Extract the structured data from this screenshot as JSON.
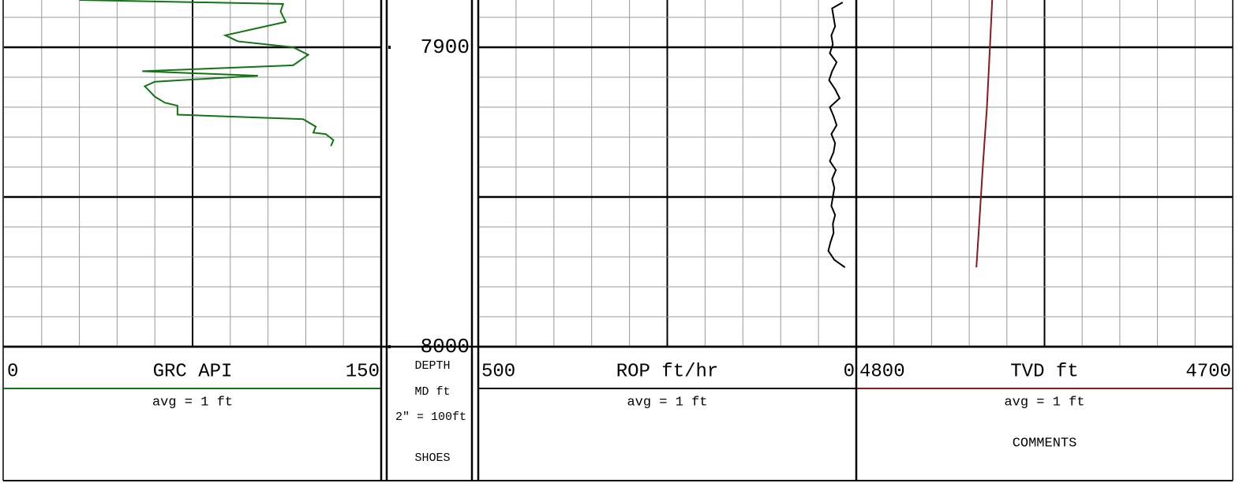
{
  "chart_data": {
    "type": "well-log",
    "depth": {
      "label": "DEPTH",
      "unit": "MD ft",
      "scale": "2\" = 100ft",
      "note": "SHOES",
      "ylim": [
        7884.2,
        8000
      ],
      "yticks": [
        7900,
        8000
      ],
      "ygrid": [
        7890,
        7900,
        7910,
        7920,
        7930,
        7940,
        7950,
        7960,
        7970,
        7980,
        7990,
        8000
      ],
      "ygrid_major": [
        7900,
        7950,
        8000
      ]
    },
    "tracks": [
      {
        "name": "GRC API",
        "note": "avg = 1 ft",
        "color": "#137413",
        "xlim": [
          0,
          150
        ],
        "xticks": [
          0,
          150
        ],
        "xgrid": [
          15,
          30,
          45,
          60,
          75,
          90,
          105,
          120,
          135
        ],
        "xgrid_major": [
          75
        ],
        "depths": [
          7884.2,
          7885.5,
          7888,
          7891.5,
          7896,
          7898,
          7900,
          7902.5,
          7906,
          7908,
          7909.5,
          7911.5,
          7913,
          7916.5,
          7918.5,
          7919.5,
          7922.5,
          7924,
          7926.5,
          7928.5,
          7929,
          7931,
          7933
        ],
        "values": [
          30,
          111,
          110,
          112,
          88,
          93,
          115,
          121,
          115,
          55,
          101,
          60,
          56,
          60,
          64,
          69,
          69,
          119,
          124,
          123,
          128,
          131,
          130
        ]
      },
      {
        "name": "ROP ft/hr",
        "note": "avg = 1 ft",
        "color": "#000000",
        "xlim": [
          500,
          0
        ],
        "xticks": [
          500,
          0
        ],
        "xgrid": [
          450,
          400,
          350,
          300,
          250,
          200,
          150,
          100,
          50
        ],
        "xgrid_major": [
          250
        ],
        "depths": [
          7885,
          7887,
          7890,
          7893,
          7896,
          7899,
          7902,
          7905,
          7908,
          7911,
          7914,
          7917,
          7920,
          7923,
          7926,
          7929,
          7932,
          7935,
          7938,
          7941,
          7944,
          7947,
          7950,
          7953,
          7956,
          7959,
          7962,
          7965,
          7968,
          7971,
          7973.5
        ],
        "values": [
          18,
          32,
          30,
          28,
          33,
          31,
          35,
          26,
          32,
          36,
          28,
          22,
          35,
          30,
          26,
          33,
          28,
          30,
          35,
          27,
          32,
          29,
          31,
          33,
          28,
          31,
          30,
          34,
          37,
          29,
          15
        ]
      },
      {
        "name": "TVD ft",
        "note": "avg = 1 ft",
        "extra": "COMMENTS",
        "color": "#8b1a1a",
        "xlim": [
          4800,
          4700
        ],
        "xticks": [
          4800,
          4700
        ],
        "xgrid": [
          4790,
          4780,
          4770,
          4760,
          4750,
          4740,
          4730,
          4720,
          4710
        ],
        "xgrid_major": [
          4750
        ],
        "depths": [
          7884.2,
          7900,
          7920,
          7940,
          7960,
          7973.5
        ],
        "values": [
          4763.9,
          4764.5,
          4765.3,
          4766.4,
          4767.4,
          4768.1
        ]
      }
    ]
  }
}
